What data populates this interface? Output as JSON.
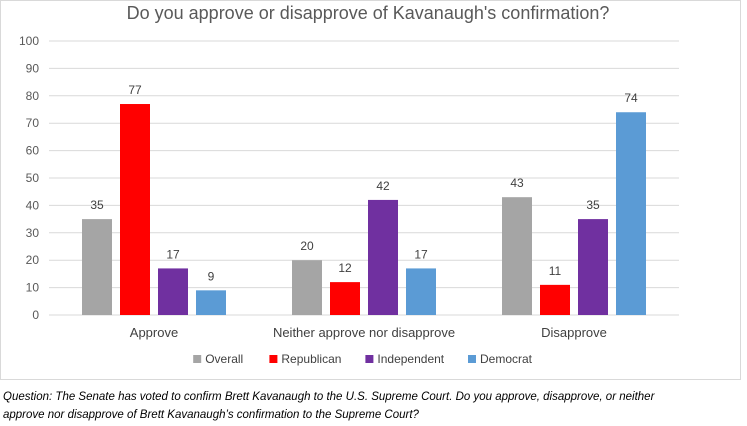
{
  "chart_data": {
    "type": "bar",
    "title": "Do you approve or disapprove of Kavanaugh's confirmation?",
    "categories": [
      "Approve",
      "Neither approve nor disapprove",
      "Disapprove"
    ],
    "series": [
      {
        "name": "Overall",
        "color": "#a5a5a5",
        "values": [
          35,
          20,
          43
        ]
      },
      {
        "name": "Republican",
        "color": "#ff0000",
        "values": [
          77,
          12,
          11
        ]
      },
      {
        "name": "Independent",
        "color": "#7030a0",
        "values": [
          17,
          42,
          35
        ]
      },
      {
        "name": "Democrat",
        "color": "#5b9bd5",
        "values": [
          9,
          17,
          74
        ]
      }
    ],
    "ylim": [
      0,
      100
    ],
    "yticks": [
      "0",
      "10",
      "20",
      "30",
      "40",
      "50",
      "60",
      "70",
      "80",
      "90",
      "100"
    ],
    "grid": true,
    "legend_position": "bottom",
    "data_labels": true
  },
  "caption": {
    "line1": "Question: The Senate has voted to confirm Brett Kavanaugh to the U.S. Supreme Court. Do you approve, disapprove, or neither",
    "line2": "approve nor disapprove of Brett Kavanaugh’s confirmation to the Supreme Court?"
  }
}
